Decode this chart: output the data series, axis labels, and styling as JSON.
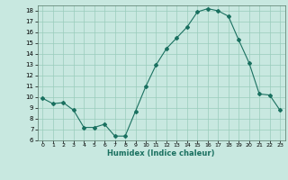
{
  "x": [
    0,
    1,
    2,
    3,
    4,
    5,
    6,
    7,
    8,
    9,
    10,
    11,
    12,
    13,
    14,
    15,
    16,
    17,
    18,
    19,
    20,
    21,
    22,
    23
  ],
  "y": [
    9.9,
    9.4,
    9.5,
    8.8,
    7.2,
    7.2,
    7.5,
    6.4,
    6.4,
    8.7,
    11.0,
    13.0,
    14.5,
    15.5,
    16.5,
    17.9,
    18.2,
    18.0,
    17.5,
    15.3,
    13.2,
    10.3,
    10.2,
    8.8
  ],
  "line_color": "#1a7060",
  "marker": "D",
  "marker_size": 2,
  "bg_color": "#c8e8e0",
  "grid_color": "#99ccbb",
  "xlabel": "Humidex (Indice chaleur)",
  "ylim": [
    6,
    18.5
  ],
  "xlim": [
    -0.5,
    23.5
  ],
  "yticks": [
    6,
    7,
    8,
    9,
    10,
    11,
    12,
    13,
    14,
    15,
    16,
    17,
    18
  ],
  "xticks": [
    0,
    1,
    2,
    3,
    4,
    5,
    6,
    7,
    8,
    9,
    10,
    11,
    12,
    13,
    14,
    15,
    16,
    17,
    18,
    19,
    20,
    21,
    22,
    23
  ]
}
